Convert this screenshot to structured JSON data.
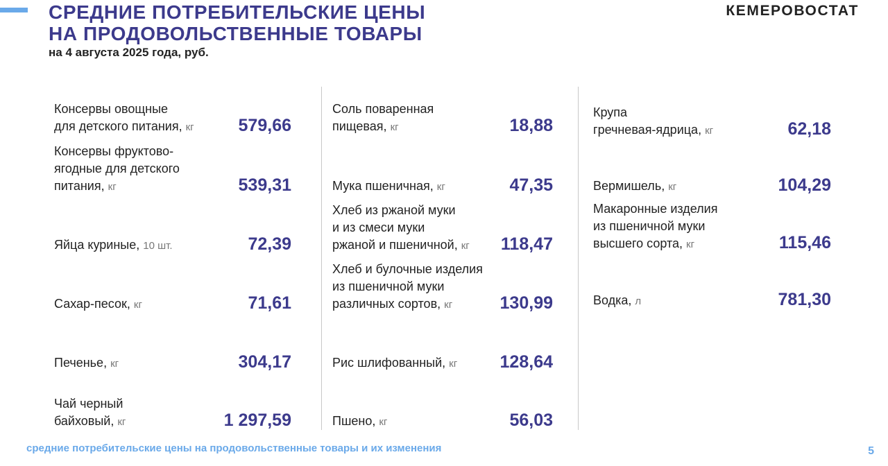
{
  "header": {
    "title_line1": "СРЕДНИЕ ПОТРЕБИТЕЛЬСКИЕ ЦЕНЫ",
    "title_line2": "НА ПРОДОВОЛЬСТВЕННЫЕ ТОВАРЫ",
    "subtitle": "на 4 августа 2025 года, руб.",
    "brand": "КЕМЕРОВОСТАТ"
  },
  "columns": [
    [
      {
        "lines": [
          "Консервы овощные",
          "для детского питания,"
        ],
        "unit": "кг",
        "value": "579,66"
      },
      {
        "lines": [
          "Консервы фруктово-",
          "ягодные для детского",
          "питания,"
        ],
        "unit": "кг",
        "value": "539,31"
      },
      {
        "lines": [
          "Яйца куриные,"
        ],
        "unit": "10 шт.",
        "value": "72,39"
      },
      {
        "lines": [
          "Сахар-песок,"
        ],
        "unit": "кг",
        "value": "71,61"
      },
      {
        "lines": [
          "Печенье,"
        ],
        "unit": "кг",
        "value": "304,17"
      },
      {
        "lines": [
          "Чай черный",
          "байховый,"
        ],
        "unit": "кг",
        "value": "1 297,59"
      }
    ],
    [
      {
        "lines": [
          "Соль поваренная",
          "пищевая,"
        ],
        "unit": "кг",
        "value": "18,88"
      },
      {
        "lines": [
          "Мука пшеничная,"
        ],
        "unit": "кг",
        "value": "47,35"
      },
      {
        "lines": [
          "Хлеб из ржаной муки",
          "и из смеси муки",
          "ржаной и пшеничной,"
        ],
        "unit": "кг",
        "value": "118,47"
      },
      {
        "lines": [
          "Хлеб и булочные изделия",
          "из пшеничной муки",
          "различных сортов,"
        ],
        "unit": "кг",
        "value": "130,99"
      },
      {
        "lines": [
          "Рис шлифованный,"
        ],
        "unit": "кг",
        "value": "128,64"
      },
      {
        "lines": [
          "Пшено,"
        ],
        "unit": "кг",
        "value": "56,03"
      }
    ],
    [
      {
        "lines": [
          "Крупа",
          "гречневая-ядрица,"
        ],
        "unit": "кг",
        "value": "62,18"
      },
      {
        "lines": [
          "Вермишель,"
        ],
        "unit": "кг",
        "value": "104,29"
      },
      {
        "lines": [
          "Макаронные изделия",
          "из пшеничной муки",
          "высшего сорта,"
        ],
        "unit": "кг",
        "value": "115,46"
      },
      {
        "lines": [
          "Водка,"
        ],
        "unit": "л",
        "value": "781,30"
      }
    ]
  ],
  "footer": {
    "text": "средние потребительские цены на продовольственные товары и их изменения",
    "page": "5"
  }
}
